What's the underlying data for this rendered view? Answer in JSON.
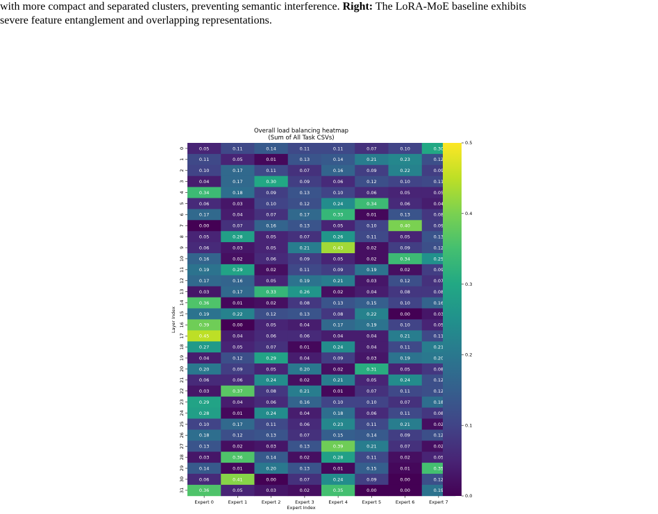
{
  "caption": {
    "line1_pre": "with more compact and separated clusters, preventing semantic interference. ",
    "line1_bold": "Right:",
    "line1_post": " The LoRA-MoE baseline exhibits",
    "line2": "severe feature entanglement and overlapping representations."
  },
  "colors": {
    "colormap": "viridis",
    "cell_text": "#ffffff",
    "axis_text": "#000000"
  },
  "chart_data": {
    "type": "heatmap",
    "title": "Overall load balancing heatmap",
    "subtitle": "(Sum of All Task CSVs)",
    "xlabel": "Expert Index",
    "ylabel": "Layer Index",
    "x_categories": [
      "Expert 0",
      "Expert 1",
      "Expert 2",
      "Expert 3",
      "Expert 4",
      "Expert 5",
      "Expert 6",
      "Expert 7"
    ],
    "y_categories": [
      "0",
      "1",
      "2",
      "3",
      "4",
      "5",
      "6",
      "7",
      "8",
      "9",
      "10",
      "11",
      "12",
      "13",
      "14",
      "15",
      "16",
      "17",
      "18",
      "19",
      "20",
      "21",
      "22",
      "23",
      "24",
      "25",
      "26",
      "27",
      "28",
      "29",
      "30",
      "31"
    ],
    "values": [
      [
        0.05,
        0.11,
        0.14,
        0.11,
        0.11,
        0.07,
        0.1,
        0.3
      ],
      [
        0.11,
        0.05,
        0.01,
        0.13,
        0.14,
        0.21,
        0.23,
        0.12
      ],
      [
        0.1,
        0.17,
        0.11,
        0.07,
        0.16,
        0.09,
        0.22,
        0.09
      ],
      [
        0.04,
        0.17,
        0.3,
        0.09,
        0.06,
        0.12,
        0.1,
        0.11
      ],
      [
        0.34,
        0.18,
        0.09,
        0.13,
        0.1,
        0.06,
        0.05,
        0.05
      ],
      [
        0.06,
        0.03,
        0.1,
        0.12,
        0.24,
        0.34,
        0.06,
        0.04
      ],
      [
        0.17,
        0.04,
        0.07,
        0.17,
        0.33,
        0.01,
        0.13,
        0.08
      ],
      [
        0.0,
        0.07,
        0.16,
        0.13,
        0.05,
        0.1,
        0.4,
        0.09
      ],
      [
        0.05,
        0.28,
        0.05,
        0.07,
        0.26,
        0.11,
        0.05,
        0.13
      ],
      [
        0.06,
        0.03,
        0.05,
        0.21,
        0.43,
        0.02,
        0.09,
        0.12
      ],
      [
        0.16,
        0.02,
        0.06,
        0.09,
        0.05,
        0.02,
        0.34,
        0.25
      ],
      [
        0.19,
        0.29,
        0.02,
        0.11,
        0.09,
        0.19,
        0.02,
        0.09
      ],
      [
        0.17,
        0.16,
        0.05,
        0.19,
        0.21,
        0.03,
        0.12,
        0.07
      ],
      [
        0.03,
        0.17,
        0.33,
        0.26,
        0.02,
        0.04,
        0.08,
        0.08
      ],
      [
        0.36,
        0.01,
        0.02,
        0.08,
        0.13,
        0.15,
        0.1,
        0.16
      ],
      [
        0.19,
        0.22,
        0.12,
        0.13,
        0.08,
        0.22,
        0.0,
        0.03
      ],
      [
        0.39,
        0.0,
        0.05,
        0.04,
        0.17,
        0.19,
        0.1,
        0.05
      ],
      [
        0.45,
        0.04,
        0.06,
        0.06,
        0.04,
        0.04,
        0.21,
        0.11
      ],
      [
        0.27,
        0.05,
        0.07,
        0.01,
        0.24,
        0.04,
        0.11,
        0.21
      ],
      [
        0.04,
        0.12,
        0.29,
        0.04,
        0.09,
        0.03,
        0.19,
        0.2
      ],
      [
        0.2,
        0.09,
        0.05,
        0.2,
        0.02,
        0.31,
        0.05,
        0.08
      ],
      [
        0.06,
        0.06,
        0.24,
        0.02,
        0.21,
        0.05,
        0.24,
        0.12
      ],
      [
        0.03,
        0.37,
        0.08,
        0.21,
        0.01,
        0.07,
        0.11,
        0.12
      ],
      [
        0.29,
        0.04,
        0.06,
        0.16,
        0.1,
        0.1,
        0.07,
        0.18
      ],
      [
        0.28,
        0.01,
        0.24,
        0.04,
        0.18,
        0.06,
        0.11,
        0.08
      ],
      [
        0.1,
        0.17,
        0.11,
        0.06,
        0.23,
        0.11,
        0.21,
        0.02
      ],
      [
        0.18,
        0.12,
        0.13,
        0.07,
        0.15,
        0.14,
        0.09,
        0.12
      ],
      [
        0.13,
        0.02,
        0.03,
        0.13,
        0.39,
        0.21,
        0.07,
        0.02
      ],
      [
        0.03,
        0.36,
        0.14,
        0.02,
        0.28,
        0.11,
        0.02,
        0.05
      ],
      [
        0.14,
        0.01,
        0.2,
        0.13,
        0.01,
        0.15,
        0.01,
        0.35
      ],
      [
        0.06,
        0.41,
        0.0,
        0.07,
        0.24,
        0.09,
        0.0,
        0.12
      ],
      [
        0.36,
        0.05,
        0.03,
        0.02,
        0.35,
        0.0,
        0.0,
        0.19
      ]
    ],
    "colorbar": {
      "vmin": 0.0,
      "vmax": 0.5,
      "ticks": [
        0.0,
        0.1,
        0.2,
        0.3,
        0.4,
        0.5
      ],
      "tick_labels": [
        "0.0",
        "0.1",
        "0.2",
        "0.3",
        "0.4",
        "0.5"
      ]
    }
  }
}
